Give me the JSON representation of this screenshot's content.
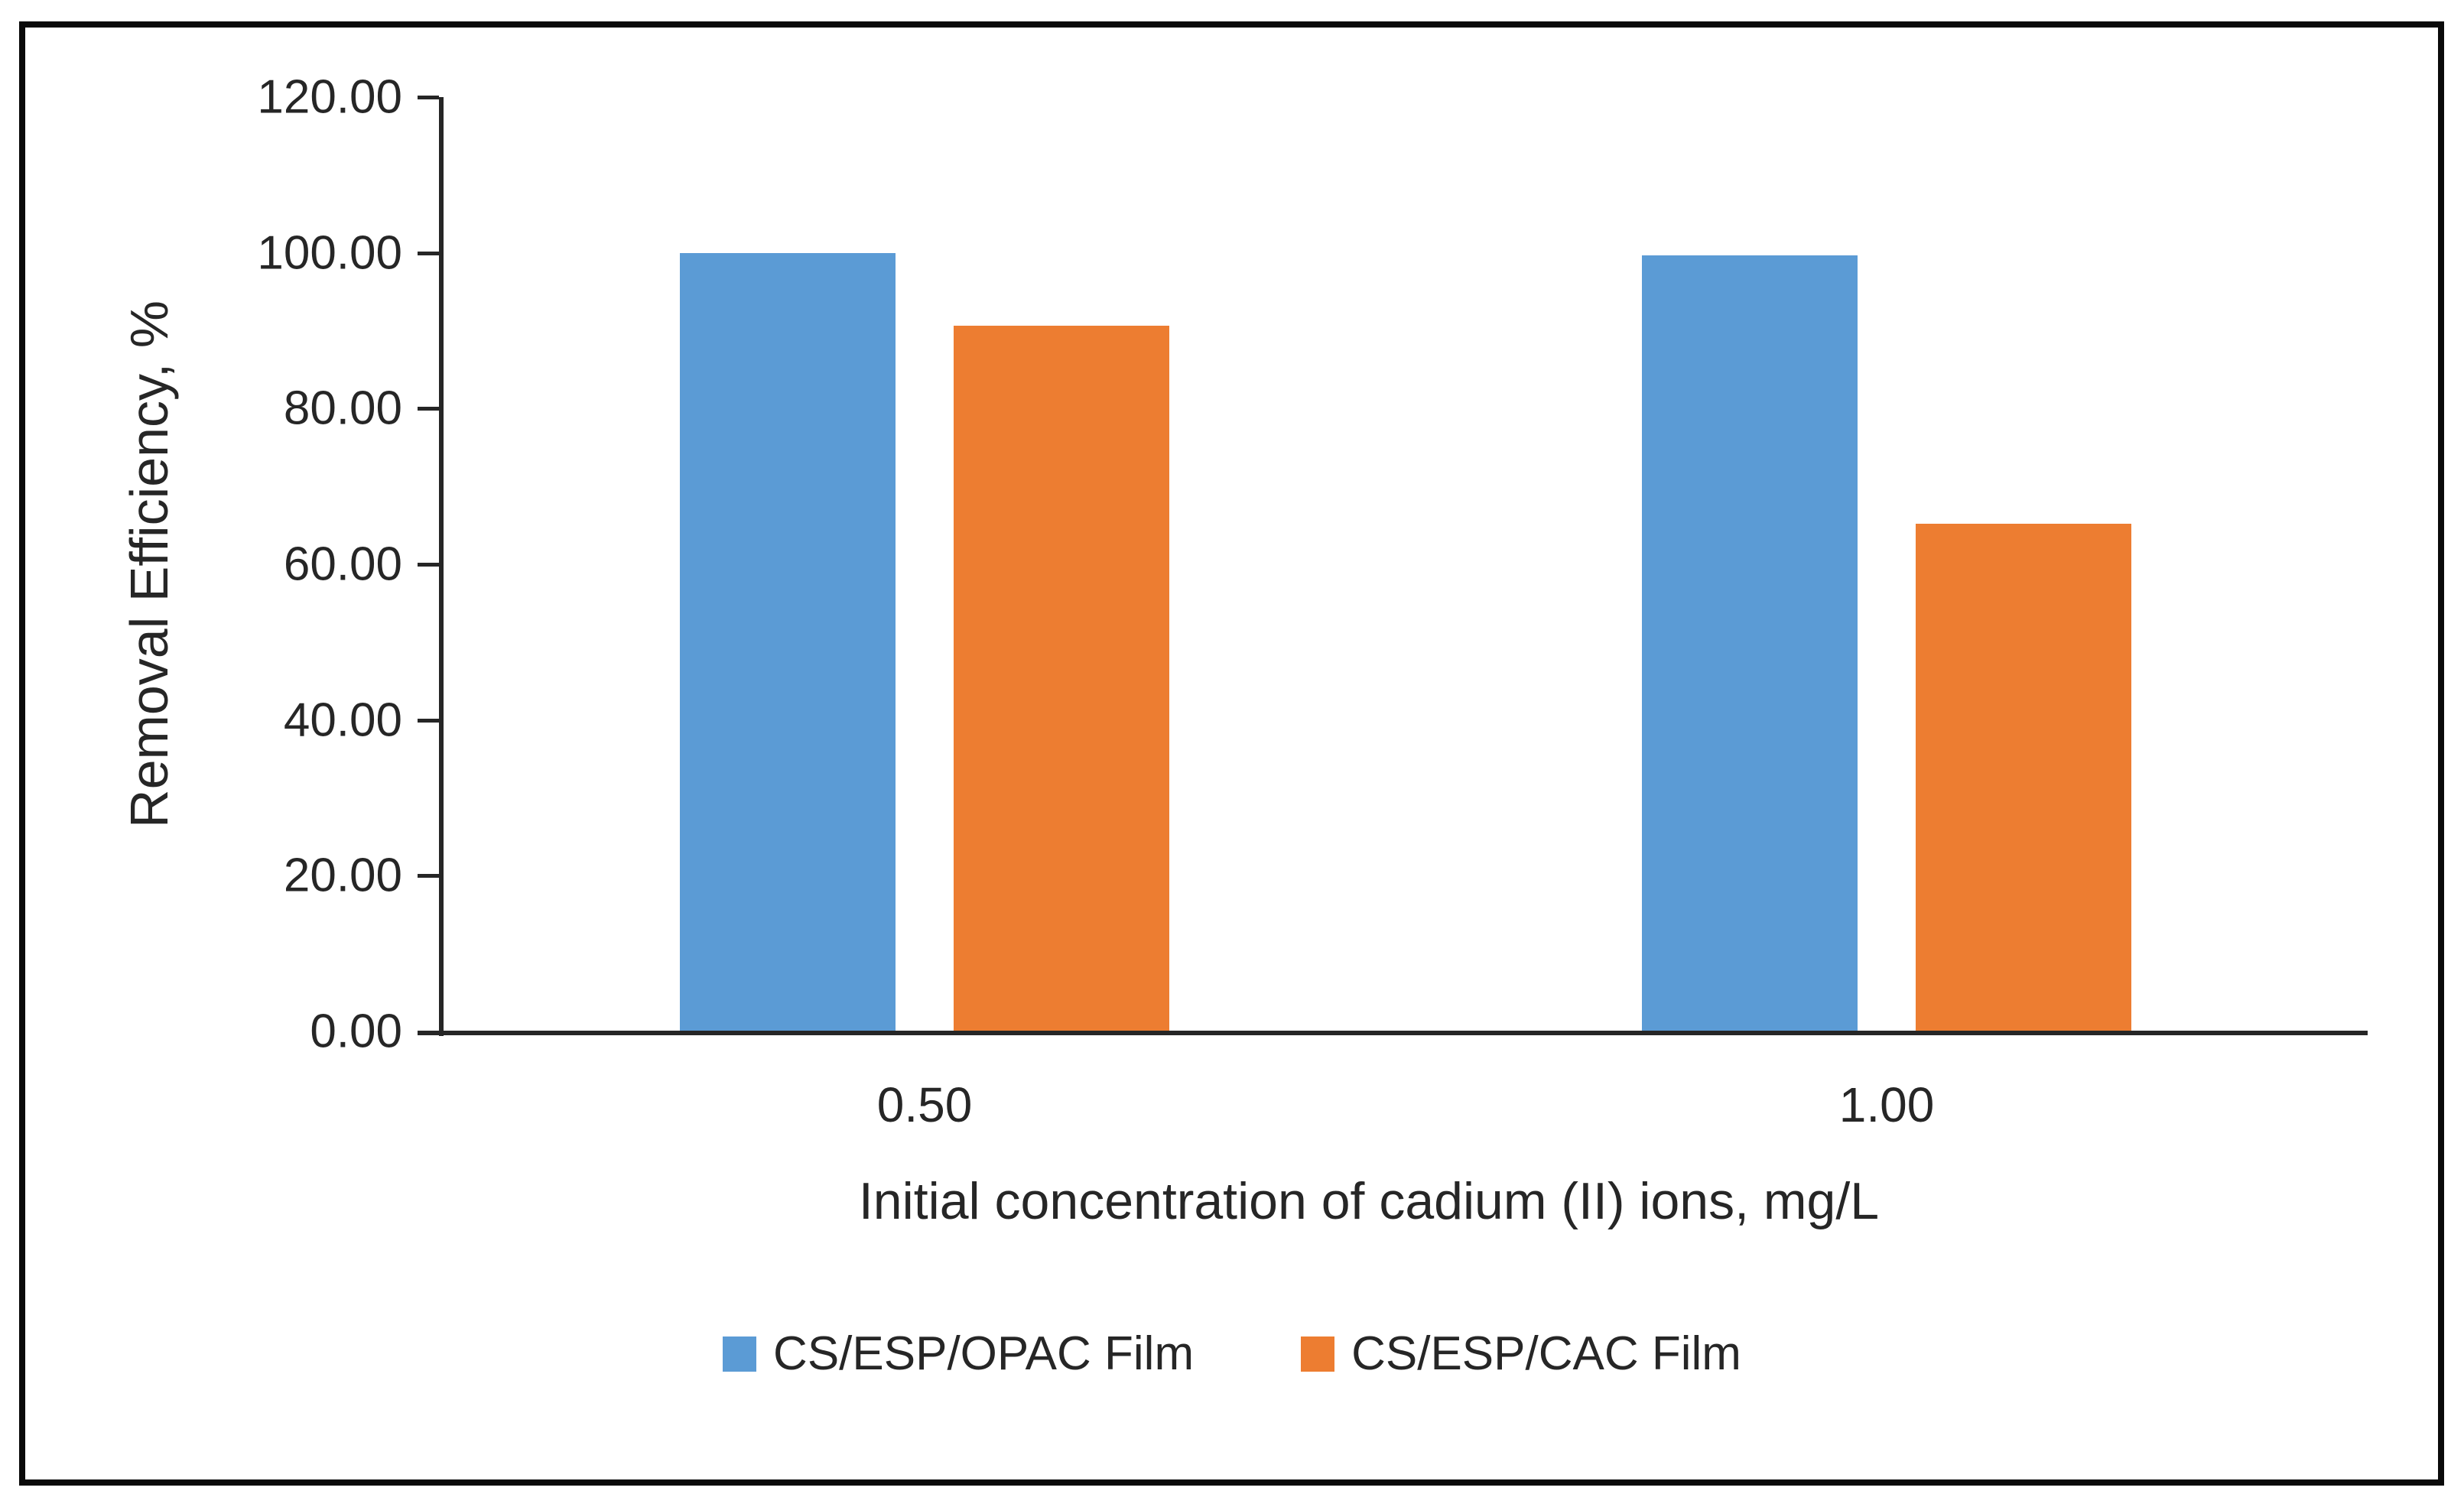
{
  "chart_data": {
    "type": "bar",
    "title": "",
    "categories": [
      "0.50",
      "1.00"
    ],
    "series": [
      {
        "name": "CS/ESP/OPAC Film",
        "color": "#5B9BD5",
        "values": [
          100.0,
          99.7
        ]
      },
      {
        "name": "CS/ESP/CAC Film",
        "color": "#ED7D31",
        "values": [
          90.6,
          65.2
        ]
      }
    ],
    "xlabel": "Initial concentration of cadium (II) ions, mg/L",
    "ylabel": "Removal Efficiency, %",
    "ylim": [
      0,
      120
    ],
    "ytick_step": 20,
    "ytick_labels": [
      "0.00",
      "20.00",
      "40.00",
      "60.00",
      "80.00",
      "100.00",
      "120.00"
    ],
    "grid": false,
    "legend_position": "bottom",
    "axis_color": "#262626",
    "text_color": "#262626",
    "frame_border_color": "#0a0a0a"
  }
}
